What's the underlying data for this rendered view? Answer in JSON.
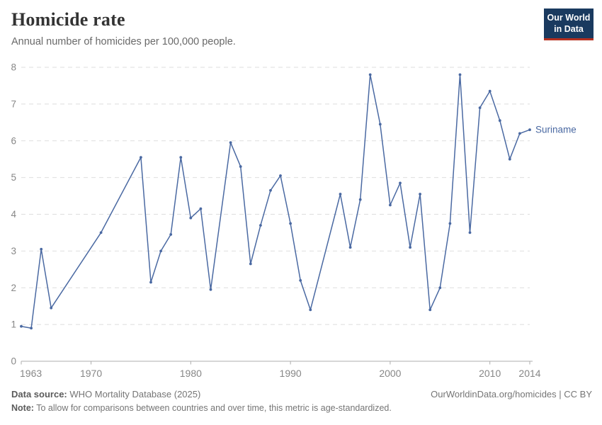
{
  "header": {
    "title": "Homicide rate",
    "subtitle": "Annual number of homicides per 100,000 people."
  },
  "logo": {
    "line1": "Our World",
    "line2": "in Data",
    "bg": "#1a3a5f",
    "accent": "#b5301f"
  },
  "chart_data": {
    "type": "line",
    "title": "Homicide rate",
    "ylabel": "",
    "xlabel": "",
    "xlim": [
      1963,
      2014
    ],
    "ylim": [
      0,
      8
    ],
    "x_ticks": [
      1963,
      1970,
      1980,
      1990,
      2000,
      2010,
      2014
    ],
    "y_ticks": [
      0,
      1,
      2,
      3,
      4,
      5,
      6,
      7,
      8
    ],
    "grid": true,
    "legend_position": "end-of-line",
    "series": [
      {
        "name": "Suriname",
        "color": "#4a69a2",
        "points": [
          [
            1963,
            0.95
          ],
          [
            1964,
            0.9
          ],
          [
            1965,
            3.05
          ],
          [
            1966,
            1.45
          ],
          [
            1971,
            3.5
          ],
          [
            1975,
            5.55
          ],
          [
            1976,
            2.15
          ],
          [
            1977,
            3.0
          ],
          [
            1978,
            3.45
          ],
          [
            1979,
            5.55
          ],
          [
            1980,
            3.9
          ],
          [
            1981,
            4.15
          ],
          [
            1982,
            1.95
          ],
          [
            1984,
            5.95
          ],
          [
            1985,
            5.3
          ],
          [
            1986,
            2.65
          ],
          [
            1987,
            3.7
          ],
          [
            1988,
            4.65
          ],
          [
            1989,
            5.05
          ],
          [
            1990,
            3.75
          ],
          [
            1991,
            2.2
          ],
          [
            1992,
            1.4
          ],
          [
            1995,
            4.55
          ],
          [
            1996,
            3.1
          ],
          [
            1997,
            4.4
          ],
          [
            1998,
            7.8
          ],
          [
            1999,
            6.45
          ],
          [
            2000,
            4.25
          ],
          [
            2001,
            4.85
          ],
          [
            2002,
            3.1
          ],
          [
            2003,
            4.55
          ],
          [
            2004,
            1.4
          ],
          [
            2005,
            2.0
          ],
          [
            2006,
            3.75
          ],
          [
            2007,
            7.8
          ],
          [
            2008,
            3.5
          ],
          [
            2009,
            6.9
          ],
          [
            2010,
            7.35
          ],
          [
            2011,
            6.55
          ],
          [
            2012,
            5.5
          ],
          [
            2013,
            6.2
          ],
          [
            2014,
            6.3
          ]
        ]
      }
    ]
  },
  "footer": {
    "source_label": "Data source:",
    "source_text": " WHO Mortality Database (2025)",
    "link_text": "OurWorldinData.org/homicides | CC BY",
    "note_label": "Note:",
    "note_text": " To allow for comparisons between countries and over time, this metric is age-standardized."
  }
}
